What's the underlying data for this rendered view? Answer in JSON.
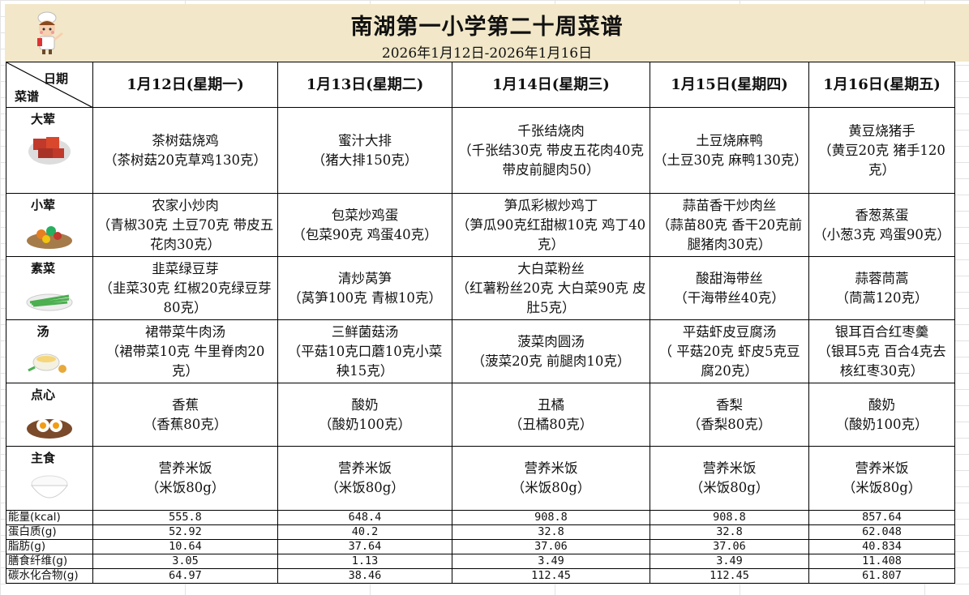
{
  "header": {
    "title": "南湖第一小学第二十周菜谱",
    "date_range": "2026年1月12日-2026年1月16日"
  },
  "corner": {
    "date_label": "日期",
    "menu_label": "菜谱"
  },
  "days": [
    "1月12日(星期一)",
    "1月13日(星期二)",
    "1月14日(星期三)",
    "1月15日(星期四)",
    "1月16日(星期五)"
  ],
  "rows": [
    {
      "category": "大荤",
      "icon": "braised-pork-icon",
      "cells": [
        [
          "茶树菇烧鸡",
          "（茶树菇20克草鸡130克）"
        ],
        [
          "蜜汁大排",
          "（猪大排150克）"
        ],
        [
          "千张结烧肉",
          "（千张结30克  带皮五花肉40克  带皮前腿肉50）"
        ],
        [
          "土豆烧麻鸭",
          "（土豆30克  麻鸭130克）"
        ],
        [
          "黄豆烧猪手",
          "（黄豆20克  猪手120克）"
        ]
      ]
    },
    {
      "category": "小荤",
      "icon": "stir-fry-icon",
      "cells": [
        [
          "农家小炒肉",
          "（青椒30克  土豆70克  带皮五花肉30克）"
        ],
        [
          "包菜炒鸡蛋",
          "（包菜90克  鸡蛋40克）"
        ],
        [
          "笋瓜彩椒炒鸡丁",
          "（笋瓜90克红甜椒10克  鸡丁40克）"
        ],
        [
          "蒜苗香干炒肉丝",
          "（蒜苗80克  香干20克前腿猪肉30克）"
        ],
        [
          "香葱蒸蛋",
          "（小葱3克  鸡蛋90克）"
        ]
      ]
    },
    {
      "category": "素菜",
      "icon": "vegetable-icon",
      "cells": [
        [
          "韭菜绿豆芽",
          "（韭菜30克  红椒20克绿豆芽80克）"
        ],
        [
          "清炒莴笋",
          "（莴笋100克  青椒10克）"
        ],
        [
          "大白菜粉丝",
          "（红薯粉丝20克  大白菜90克  皮肚5克）"
        ],
        [
          "酸甜海带丝",
          "（干海带丝40克）"
        ],
        [
          "蒜蓉茼蒿",
          "（茼蒿120克）"
        ]
      ]
    },
    {
      "category": "汤",
      "icon": "soup-icon",
      "cells": [
        [
          "裙带菜牛肉汤",
          "（裙带菜10克  牛里脊肉20克）"
        ],
        [
          "三鲜菌菇汤",
          "（平菇10克口蘑10克小菜秧15克）"
        ],
        [
          "菠菜肉圆汤",
          "（菠菜20克  前腿肉10克）"
        ],
        [
          "平菇虾皮豆腐汤",
          "（  平菇20克  虾皮5克豆腐20克）"
        ],
        [
          "银耳百合红枣羹",
          "（银耳5克  百合4克去核红枣30克）"
        ]
      ]
    },
    {
      "category": "点心",
      "icon": "egg-snack-icon",
      "cells": [
        [
          "香蕉",
          "（香蕉80克）"
        ],
        [
          "酸奶",
          "（酸奶100克）"
        ],
        [
          "丑橘",
          "（丑橘80克）"
        ],
        [
          "香梨",
          "（香梨80克）"
        ],
        [
          "酸奶",
          "（酸奶100克）"
        ]
      ]
    },
    {
      "category": "主食",
      "icon": "rice-bowl-icon",
      "cells": [
        [
          "营养米饭",
          "（米饭80g）"
        ],
        [
          "营养米饭",
          "（米饭80g）"
        ],
        [
          "营养米饭",
          "（米饭80g）"
        ],
        [
          "营养米饭",
          "（米饭80g）"
        ],
        [
          "营养米饭",
          "（米饭80g）"
        ]
      ]
    }
  ],
  "nutrition": [
    {
      "label": "能量(kcal)",
      "values": [
        "555.8",
        "648.4",
        "908.8",
        "908.8",
        "857.64"
      ]
    },
    {
      "label": "蛋白质(g)",
      "values": [
        "52.92",
        "40.2",
        "32.8",
        "32.8",
        "62.048"
      ]
    },
    {
      "label": "脂肪(g)",
      "values": [
        "10.64",
        "37.64",
        "37.06",
        "37.06",
        "40.834"
      ]
    },
    {
      "label": "膳食纤维(g)",
      "values": [
        "3.05",
        "1.13",
        "3.49",
        "3.49",
        "11.408"
      ]
    },
    {
      "label": "碳水化合物(g)",
      "values": [
        "64.97",
        "38.46",
        "112.45",
        "112.45",
        "61.807"
      ]
    }
  ],
  "colors": {
    "banner": "#f2e8c9"
  }
}
